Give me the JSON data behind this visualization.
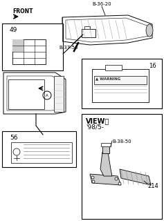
{
  "bg_color": "#ffffff",
  "line_color": "#000000",
  "gray_color": "#999999",
  "light_gray": "#cccccc",
  "mid_gray": "#888888",
  "labels": {
    "front": "FRONT",
    "b3620": "B-36-20",
    "b3750": "B-37-50",
    "b3850": "B-38-50",
    "num_49": "49",
    "num_16": "16",
    "num_56": "56",
    "num_214": "214",
    "view_a": "VIEWⒶ",
    "date": "'98/5-",
    "warning": "▲ WARNING"
  },
  "figsize": [
    2.37,
    3.2
  ],
  "dpi": 100
}
